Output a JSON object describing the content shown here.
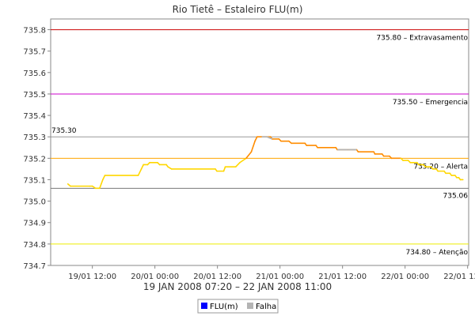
{
  "colors": {
    "flu": "#0000ff",
    "falha": "#b4b4b4",
    "line_low": "#ffd700",
    "line_high": "#ff8c00",
    "gap": "#b4b4b4"
  },
  "chart_data": {
    "type": "line",
    "title": "Rio Tietê – Estaleiro FLU(m)",
    "xlabel": "19 JAN 2008 07:20 – 22 JAN 2008 11:00",
    "ylabel": "",
    "x_unit": "hours since 19/01 00:00",
    "xlim": [
      4.0,
      84.2
    ],
    "ylim": [
      734.7,
      735.85
    ],
    "grid": false,
    "y_ticks": [
      "734.7",
      "734.8",
      "734.9",
      "735.0",
      "735.1",
      "735.2",
      "735.3",
      "735.4",
      "735.5",
      "735.6",
      "735.7",
      "735.8"
    ],
    "x_ticks": [
      {
        "label": "19/01 12:00",
        "x": 12
      },
      {
        "label": "20/01 00:00",
        "x": 24
      },
      {
        "label": "20/01 12:00",
        "x": 36
      },
      {
        "label": "21/01 00:00",
        "x": 48
      },
      {
        "label": "21/01 12:00",
        "x": 60
      },
      {
        "label": "22/01 00:00",
        "x": 72
      },
      {
        "label": "22/01 12:00",
        "x": 84
      }
    ],
    "reference_lines": [
      {
        "value": 735.8,
        "label": "735.80 – Extravasamento",
        "color": "#cc0000",
        "label_side": "right"
      },
      {
        "value": 735.5,
        "label": "735.50 – Emergencia",
        "color": "#cc00cc",
        "label_side": "right"
      },
      {
        "value": 735.3,
        "label": "735.30",
        "color": "#999999",
        "label_side": "left"
      },
      {
        "value": 735.2,
        "label": "735.20 – Alerta",
        "color": "#ffa500",
        "label_side": "right"
      },
      {
        "value": 735.06,
        "label": "735.06",
        "color": "#777777",
        "label_side": "right-below"
      },
      {
        "value": 734.8,
        "label": "734.80 – Atenção",
        "color": "#eeee00",
        "label_side": "right"
      }
    ],
    "series": [
      {
        "name": "FLU(m)",
        "points": [
          [
            7.3,
            735.08
          ],
          [
            7.8,
            735.07
          ],
          [
            11.5,
            735.07
          ],
          [
            12.0,
            735.07
          ],
          [
            12.6,
            735.06
          ],
          [
            13.4,
            735.06
          ],
          [
            14.0,
            735.1
          ],
          [
            14.4,
            735.12
          ],
          [
            20.8,
            735.12
          ],
          [
            21.4,
            735.15
          ],
          [
            21.8,
            735.17
          ],
          [
            22.6,
            735.17
          ],
          [
            23.0,
            735.18
          ],
          [
            24.5,
            735.18
          ],
          [
            24.9,
            735.17
          ],
          [
            26.2,
            735.17
          ],
          [
            26.5,
            735.16
          ],
          [
            27.2,
            735.15
          ],
          [
            35.6,
            735.15
          ],
          [
            35.9,
            735.14
          ],
          [
            37.2,
            735.14
          ],
          [
            37.5,
            735.16
          ],
          [
            39.5,
            735.16
          ],
          [
            40.3,
            735.18
          ],
          [
            41.5,
            735.2
          ],
          [
            42.5,
            735.23
          ],
          [
            43.2,
            735.28
          ],
          [
            43.6,
            735.3
          ],
          [
            46.2,
            735.3
          ],
          [
            46.5,
            735.29
          ],
          [
            47.8,
            735.29
          ],
          [
            48.2,
            735.28
          ],
          [
            49.7,
            735.28
          ],
          [
            50.2,
            735.27
          ],
          [
            52.8,
            735.27
          ],
          [
            53.1,
            735.26
          ],
          [
            54.9,
            735.26
          ],
          [
            55.2,
            735.25
          ],
          [
            58.7,
            735.25
          ],
          [
            59.0,
            735.24
          ],
          [
            62.7,
            735.24
          ],
          [
            63.0,
            735.23
          ],
          [
            66.0,
            735.23
          ],
          [
            66.2,
            735.22
          ],
          [
            67.6,
            735.22
          ],
          [
            67.9,
            735.21
          ],
          [
            69.0,
            735.21
          ],
          [
            69.4,
            735.2
          ],
          [
            71.2,
            735.2
          ],
          [
            71.6,
            735.19
          ],
          [
            72.6,
            735.19
          ],
          [
            73.0,
            735.18
          ],
          [
            74.3,
            735.18
          ],
          [
            74.6,
            735.17
          ],
          [
            75.5,
            735.17
          ],
          [
            75.9,
            735.16
          ],
          [
            77.0,
            735.16
          ],
          [
            77.3,
            735.15
          ],
          [
            78.0,
            735.15
          ],
          [
            78.3,
            735.14
          ],
          [
            79.5,
            735.14
          ],
          [
            79.8,
            735.13
          ],
          [
            80.6,
            735.13
          ],
          [
            80.9,
            735.12
          ],
          [
            81.6,
            735.12
          ],
          [
            81.9,
            735.11
          ],
          [
            82.3,
            735.11
          ],
          [
            82.6,
            735.1
          ],
          [
            83.1,
            735.1
          ]
        ]
      },
      {
        "name": "Falha",
        "segments": [
          [
            [
              44.5,
              735.3
            ],
            [
              45.5,
              735.3
            ],
            [
              46.5,
              735.29
            ]
          ],
          [
            [
              59.0,
              735.24
            ],
            [
              61.0,
              735.24
            ],
            [
              62.7,
              735.24
            ]
          ]
        ]
      }
    ],
    "legend": {
      "position": "bottom-center",
      "entries": [
        {
          "name": "FLU(m)",
          "color": "#0000ff"
        },
        {
          "name": "Falha",
          "color": "#b4b4b4"
        }
      ]
    }
  }
}
